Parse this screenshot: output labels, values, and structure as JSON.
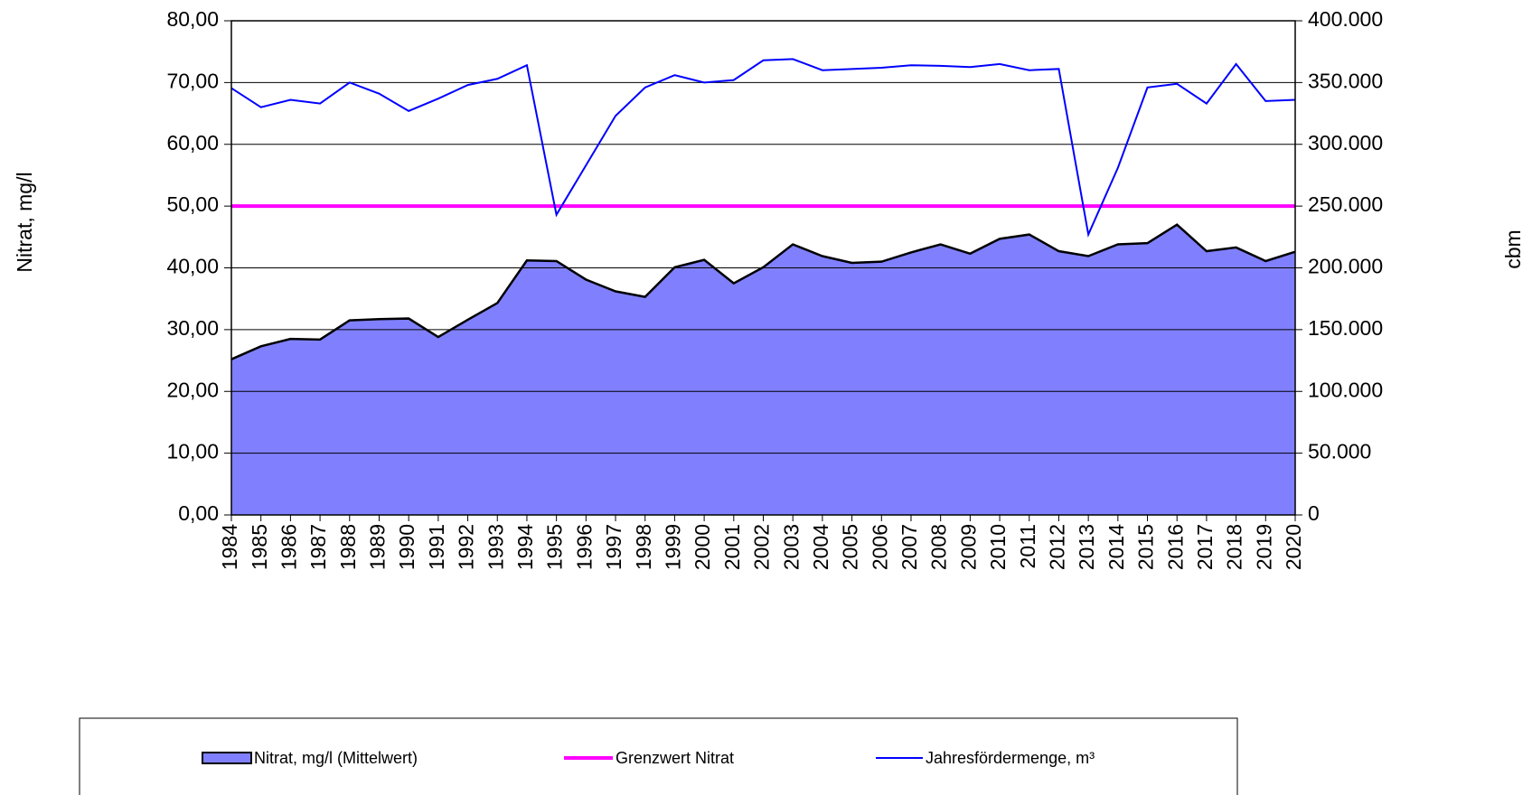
{
  "chart_data": {
    "type": "area",
    "y_label": "Nitrat, mg/l",
    "y2_label": "cbm",
    "categories": [
      "1984",
      "1985",
      "1986",
      "1987",
      "1988",
      "1989",
      "1990",
      "1991",
      "1992",
      "1993",
      "1994",
      "1995",
      "1996",
      "1997",
      "1998",
      "1999",
      "2000",
      "2001",
      "2002",
      "2003",
      "2004",
      "2005",
      "2006",
      "2007",
      "2008",
      "2009",
      "2010",
      "2011",
      "2012",
      "2013",
      "2014",
      "2015",
      "2016",
      "2017",
      "2018",
      "2019",
      "2020"
    ],
    "series": [
      {
        "name": "Nitrat, mg/l (Mittelwert)",
        "type": "area",
        "color": "#8080ff",
        "values": [
          25.2,
          27.3,
          28.5,
          28.4,
          31.5,
          31.7,
          31.8,
          28.8,
          31.6,
          34.3,
          41.2,
          41.1,
          38.1,
          36.2,
          35.3,
          40.1,
          41.3,
          37.5,
          40.1,
          43.8,
          41.9,
          40.8,
          41.0,
          42.5,
          43.8,
          42.3,
          44.7,
          45.4,
          42.7,
          41.9,
          43.8,
          44.0,
          47.0,
          42.7,
          43.3,
          41.1,
          42.6
        ]
      },
      {
        "name": "Grenzwert Nitrat",
        "type": "line",
        "color": "#ff00ff",
        "values": [
          50,
          50,
          50,
          50,
          50,
          50,
          50,
          50,
          50,
          50,
          50,
          50,
          50,
          50,
          50,
          50,
          50,
          50,
          50,
          50,
          50,
          50,
          50,
          50,
          50,
          50,
          50,
          50,
          50,
          50,
          50,
          50,
          50,
          50,
          50,
          50,
          50
        ]
      },
      {
        "name": "Jahresfördermenge, m³",
        "type": "line",
        "color": "#0000ff",
        "axis": "y2",
        "values": [
          345500,
          330000,
          336000,
          333000,
          350000,
          341000,
          327000,
          337000,
          348000,
          353000,
          364000,
          243000,
          283000,
          323000,
          346000,
          356000,
          350000,
          352000,
          368000,
          369000,
          360000,
          361000,
          362000,
          364000,
          363500,
          362500,
          365000,
          360000,
          361000,
          227000,
          281000,
          346000,
          349000,
          333000,
          365000,
          335000,
          336000
        ]
      }
    ],
    "ylim": [
      0,
      80
    ],
    "yticks": [
      {
        "value": 0,
        "label": "0,00"
      },
      {
        "value": 10,
        "label": "10,00"
      },
      {
        "value": 20,
        "label": "20,00"
      },
      {
        "value": 30,
        "label": "30,00"
      },
      {
        "value": 40,
        "label": "40,00"
      },
      {
        "value": 50,
        "label": "50,00"
      },
      {
        "value": 60,
        "label": "60,00"
      },
      {
        "value": 70,
        "label": "70,00"
      },
      {
        "value": 80,
        "label": "80,00"
      }
    ],
    "y2lim": [
      0,
      400000
    ],
    "y2ticks": [
      0,
      {
        "value": 50000,
        "label": "50.000"
      },
      {
        "value": 100000,
        "label": "100.000"
      },
      {
        "value": 150000,
        "label": "150.000"
      },
      {
        "value": 200000,
        "label": "200.000"
      },
      {
        "value": 250000,
        "label": "250.000"
      },
      {
        "value": 300000,
        "label": "300.000"
      },
      {
        "value": 350000,
        "label": "350.000"
      },
      {
        "value": 400000,
        "label": "400.000"
      }
    ],
    "grid": true
  }
}
